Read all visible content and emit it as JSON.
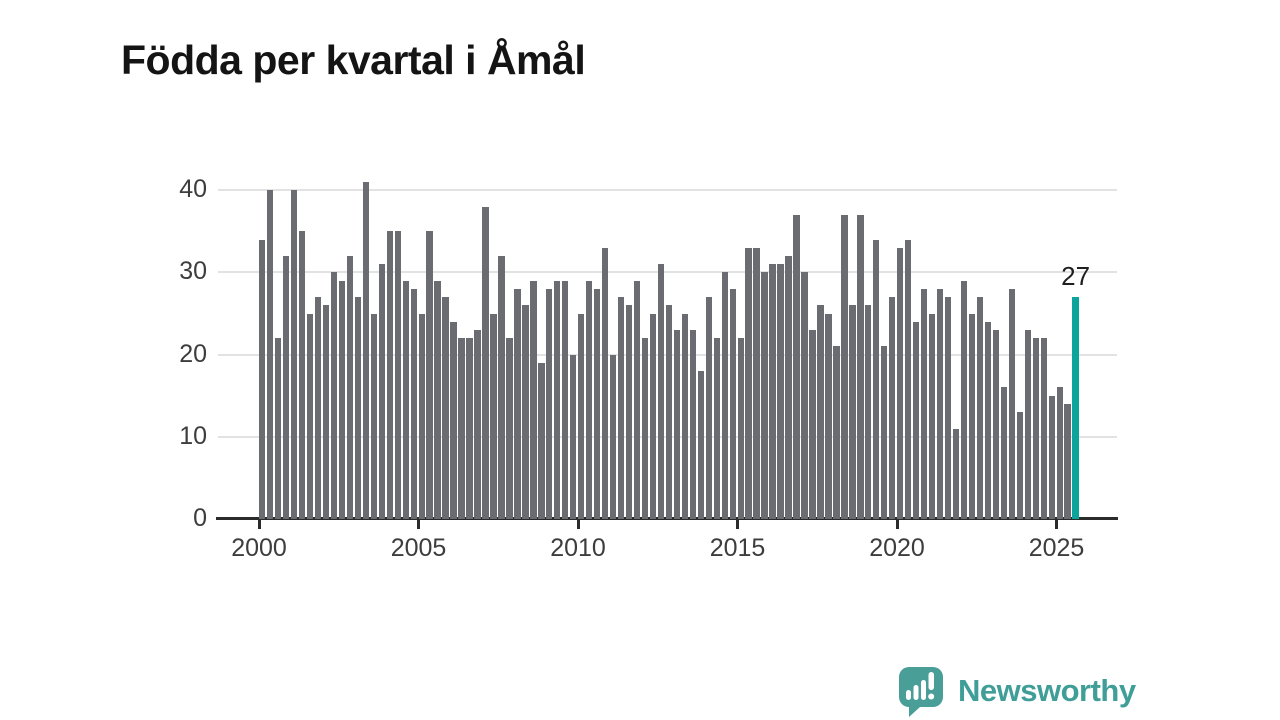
{
  "title": "Födda per kvartal i Åmål",
  "annotation": "27",
  "brand": {
    "name": "Newsworthy",
    "icon": "newsworthy-speech-bubble-chart-icon"
  },
  "colors": {
    "bar": "#6b6b72",
    "highlight": "#0ca59c",
    "gridline": "#e2e2e2",
    "axis": "#2b2b2b",
    "logo_teal": "#4a9e98"
  },
  "chart_data": {
    "type": "bar",
    "title": "Födda per kvartal i Åmål",
    "freq": "quarterly",
    "start_year": 2000,
    "x_start": "2000-Q1",
    "x_end": "2025-Q3",
    "values": [
      34,
      40,
      22,
      32,
      40,
      35,
      25,
      27,
      26,
      30,
      29,
      32,
      27,
      41,
      25,
      31,
      35,
      35,
      29,
      28,
      25,
      35,
      29,
      27,
      24,
      22,
      22,
      23,
      38,
      25,
      32,
      22,
      28,
      26,
      29,
      19,
      28,
      29,
      29,
      20,
      25,
      29,
      28,
      33,
      20,
      27,
      26,
      29,
      22,
      25,
      31,
      26,
      23,
      25,
      23,
      18,
      27,
      22,
      30,
      28,
      22,
      33,
      33,
      30,
      31,
      31,
      32,
      37,
      30,
      23,
      26,
      25,
      21,
      37,
      26,
      37,
      26,
      34,
      21,
      27,
      33,
      34,
      24,
      28,
      25,
      28,
      27,
      11,
      29,
      25,
      27,
      24,
      23,
      16,
      28,
      13,
      23,
      22,
      22,
      15,
      16,
      14,
      27
    ],
    "highlight_last_value": 27,
    "x_tick_labels": [
      "2000",
      "2005",
      "2010",
      "2015",
      "2020",
      "2025"
    ],
    "yticks": [
      0,
      10,
      20,
      30,
      40
    ],
    "ylim": [
      0,
      44
    ],
    "grid": "horizontal",
    "legend": "none"
  }
}
